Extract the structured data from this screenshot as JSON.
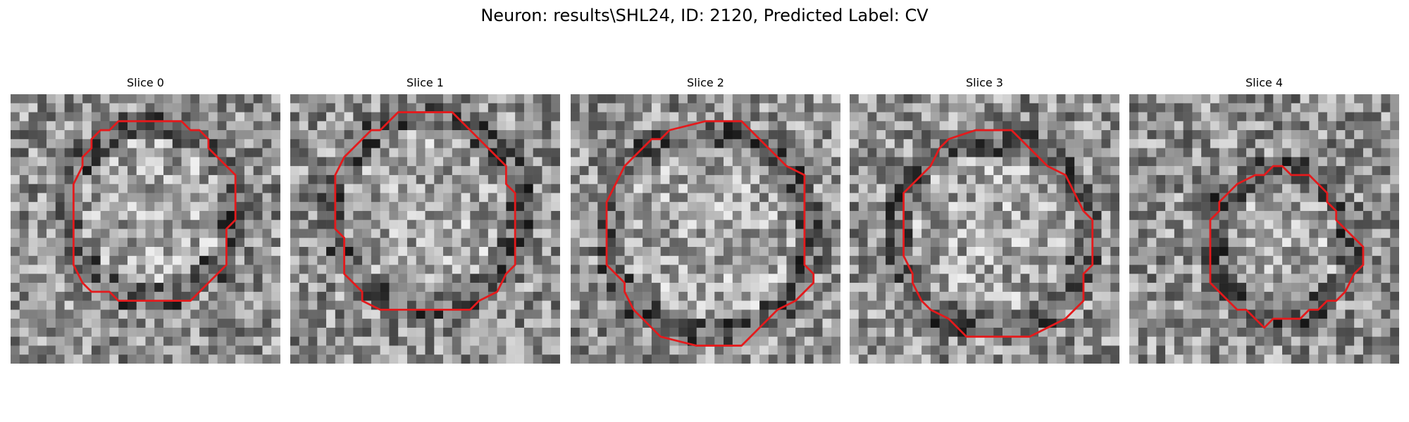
{
  "figure": {
    "title": "Neuron: results\\SHL24, ID: 2120, Predicted Label: CV",
    "contour_color": "#e41a1c",
    "image_style": "grayscale noisy microscopy patch, 30x30 pixels",
    "panels": [
      {
        "title": "Slice 0",
        "seed": 11
      },
      {
        "title": "Slice 1",
        "seed": 23
      },
      {
        "title": "Slice 2",
        "seed": 37
      },
      {
        "title": "Slice 3",
        "seed": 41
      },
      {
        "title": "Slice 4",
        "seed": 59
      }
    ]
  }
}
